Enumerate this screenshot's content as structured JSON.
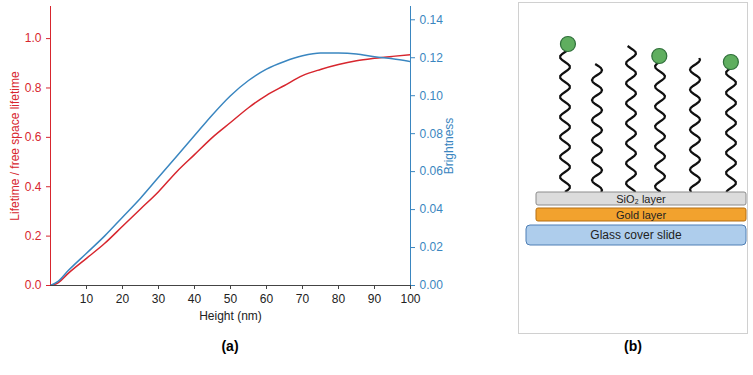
{
  "chart_data": {
    "type": "line",
    "panel_label": "(a)",
    "xlabel": "Height (nm)",
    "x": [
      0,
      2,
      5,
      10,
      15,
      20,
      25,
      30,
      35,
      40,
      45,
      50,
      55,
      60,
      65,
      70,
      75,
      80,
      85,
      90,
      95,
      100
    ],
    "xlim": [
      0,
      100
    ],
    "xticks": [
      10,
      20,
      30,
      40,
      50,
      60,
      70,
      80,
      90,
      100
    ],
    "ylim": [
      0,
      1.13
    ],
    "yticks": [
      {
        "value": 0,
        "label": "0.0"
      },
      {
        "value": 0.2,
        "label": "0.2"
      },
      {
        "value": 0.4,
        "label": "0.4"
      },
      {
        "value": 0.6,
        "label": "0.6"
      },
      {
        "value": 0.8,
        "label": "0.8"
      },
      {
        "value": 1,
        "label": "1.0"
      }
    ],
    "y2lim": [
      0,
      0.147
    ],
    "y2ticks": [
      {
        "value": 0,
        "label": "0.00"
      },
      {
        "value": 0.02,
        "label": "0.02"
      },
      {
        "value": 0.04,
        "label": "0.04"
      },
      {
        "value": 0.06,
        "label": "0.06"
      },
      {
        "value": 0.08,
        "label": "0.08"
      },
      {
        "value": 0.1,
        "label": "0.10"
      },
      {
        "value": 0.12,
        "label": "0.12"
      },
      {
        "value": 0.14,
        "label": "0.14"
      }
    ],
    "grid": false,
    "series": [
      {
        "name": "Lifetime / free space lifetime",
        "color": "#d7262e",
        "axis": "y",
        "values": [
          0,
          0.01,
          0.05,
          0.11,
          0.17,
          0.24,
          0.31,
          0.38,
          0.46,
          0.53,
          0.6,
          0.66,
          0.72,
          0.77,
          0.81,
          0.85,
          0.875,
          0.895,
          0.91,
          0.92,
          0.928,
          0.935
        ]
      },
      {
        "name": "Brightness",
        "color": "#3a86c0",
        "axis": "y2",
        "values": [
          0,
          0.002,
          0.008,
          0.017,
          0.026,
          0.036,
          0.046,
          0.057,
          0.068,
          0.079,
          0.09,
          0.1,
          0.108,
          0.114,
          0.118,
          0.121,
          0.1225,
          0.1225,
          0.122,
          0.1205,
          0.1195,
          0.118
        ]
      }
    ]
  },
  "diagram": {
    "panel_label": "(b)",
    "layers": [
      "SiO₂ layer",
      "Gold layer",
      "Glass cover slide"
    ]
  }
}
